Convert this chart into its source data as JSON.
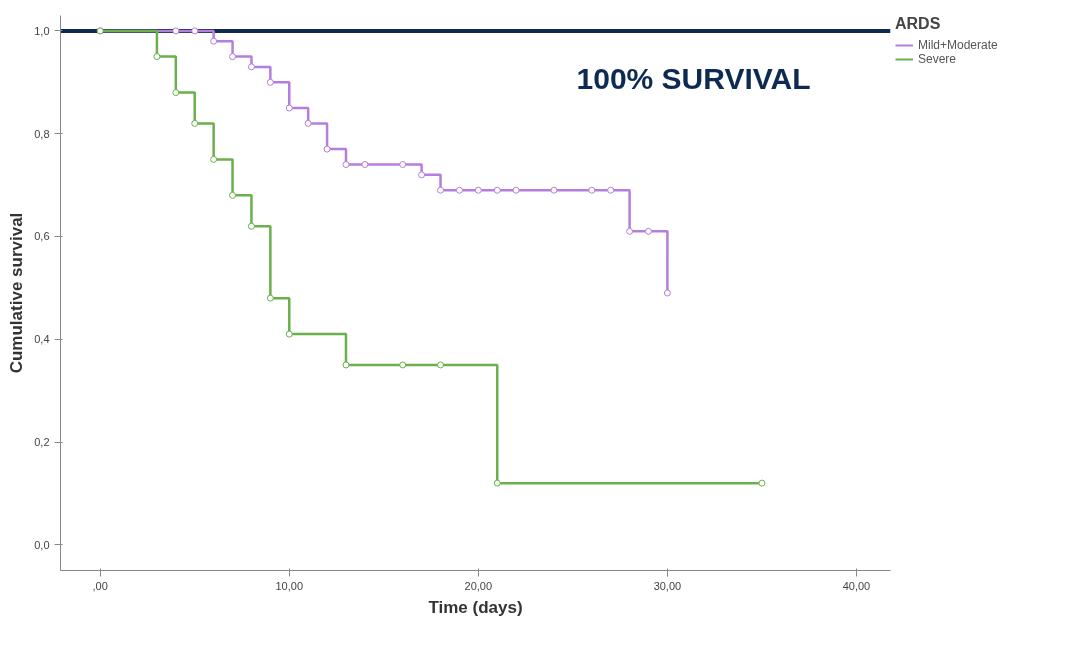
{
  "chart_data": {
    "type": "step",
    "xlabel": "Time (days)",
    "ylabel": "Cumulative survival",
    "legend_title": "ARDS",
    "xlim": [
      -2.1,
      41.8
    ],
    "ylim": [
      -0.05,
      1.03
    ],
    "xticks": [
      {
        "value": 0,
        "label": ",00"
      },
      {
        "value": 10,
        "label": "10,00"
      },
      {
        "value": 20,
        "label": "20,00"
      },
      {
        "value": 30,
        "label": "30,00"
      },
      {
        "value": 40,
        "label": "40,00"
      }
    ],
    "yticks": [
      {
        "value": 0,
        "label": "0,0"
      },
      {
        "value": 0.2,
        "label": "0,2"
      },
      {
        "value": 0.4,
        "label": "0,4"
      },
      {
        "value": 0.6,
        "label": "0,6"
      },
      {
        "value": 0.8,
        "label": "0,8"
      },
      {
        "value": 1.0,
        "label": "1,0"
      }
    ],
    "grid": false,
    "legend": "top right",
    "marker": "circle",
    "line_style": "solid",
    "series": [
      {
        "name": "Mild+Moderate",
        "color": "#b57edc",
        "x": [
          0,
          4,
          5,
          6,
          7,
          8,
          9,
          10,
          11,
          12,
          13,
          14,
          16,
          17,
          18,
          19,
          20,
          21,
          22,
          24,
          26,
          27,
          28,
          29,
          30
        ],
        "values": [
          1,
          1,
          1,
          0.98,
          0.95,
          0.93,
          0.9,
          0.85,
          0.82,
          0.77,
          0.74,
          0.74,
          0.74,
          0.72,
          0.69,
          0.69,
          0.69,
          0.69,
          0.69,
          0.69,
          0.69,
          0.69,
          0.61,
          0.61,
          0.49
        ]
      },
      {
        "name": "Severe",
        "color": "#6ab04c",
        "x": [
          0,
          3,
          4,
          5,
          6,
          7,
          8,
          9,
          10,
          13,
          16,
          18,
          21,
          35
        ],
        "values": [
          1,
          0.95,
          0.88,
          0.82,
          0.75,
          0.68,
          0.62,
          0.48,
          0.41,
          0.35,
          0.35,
          0.35,
          0.12,
          0.12
        ]
      }
    ],
    "ref_lines": [
      {
        "axis": "y",
        "value": 1.0,
        "label": "100% SURVIVAL",
        "color": "#0d2b52",
        "line_style": "solid"
      }
    ]
  }
}
